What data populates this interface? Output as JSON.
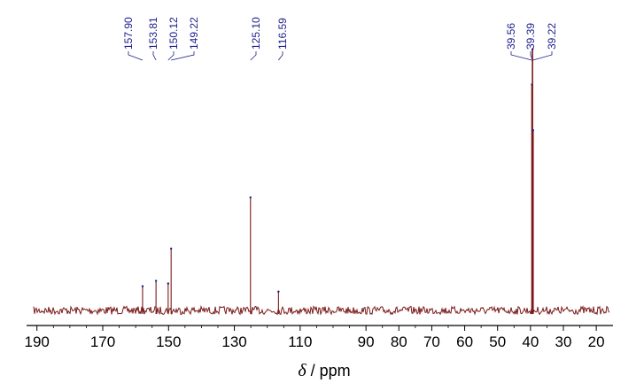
{
  "chart_data": {
    "type": "line",
    "xlabel_symbol": "δ",
    "xlabel_unit": "/ ppm",
    "xlim": [
      191,
      16
    ],
    "x_reversed": true,
    "ylim": [
      0,
      100
    ],
    "grid": false,
    "x_ticks": [
      190,
      170,
      150,
      130,
      110,
      90,
      80,
      70,
      60,
      50,
      40,
      30,
      20
    ],
    "baseline": 3,
    "peaks": [
      {
        "x": 157.9,
        "y": 12
      },
      {
        "x": 153.81,
        "y": 14
      },
      {
        "x": 150.12,
        "y": 13
      },
      {
        "x": 149.22,
        "y": 26
      },
      {
        "x": 125.1,
        "y": 45
      },
      {
        "x": 116.59,
        "y": 10
      },
      {
        "x": 39.56,
        "y": 87
      },
      {
        "x": 39.39,
        "y": 100
      },
      {
        "x": 39.22,
        "y": 70
      }
    ],
    "peak_labels": [
      {
        "text": "157.90",
        "x": 157.9
      },
      {
        "text": "153.81",
        "x": 153.81
      },
      {
        "text": "150.12",
        "x": 150.12
      },
      {
        "text": "149.22",
        "x": 149.22
      },
      {
        "text": "125.10",
        "x": 125.1
      },
      {
        "text": "116.59",
        "x": 116.59
      },
      {
        "text": "39.56",
        "x": 39.56
      },
      {
        "text": "39.39",
        "x": 39.39
      },
      {
        "text": "39.22",
        "x": 39.22
      }
    ],
    "colors": {
      "spectrum": "#7a1a1a",
      "labels": "#1b1b8c",
      "axis": "#000000"
    }
  }
}
